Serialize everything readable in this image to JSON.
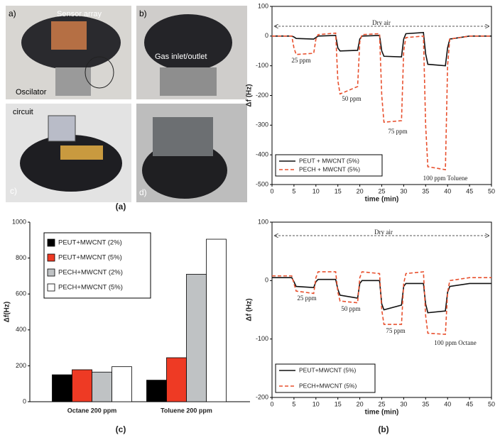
{
  "photos": {
    "panels": [
      {
        "label": "a)",
        "annotations": [
          "Sensor array",
          "Oscilator"
        ]
      },
      {
        "label": "b)",
        "annotations": [
          "Gas inlet/outlet"
        ]
      },
      {
        "label": "c)",
        "annotations": [
          "circuit"
        ]
      },
      {
        "label": "d)",
        "annotations": []
      }
    ]
  },
  "panel_labels": [
    "(a)",
    "(c)",
    "(b)"
  ],
  "chart_data": [
    {
      "type": "line",
      "xlabel": "time (min)",
      "ylabel": "Δf (Hz)",
      "xlim": [
        0,
        50
      ],
      "xticks": [
        0,
        5,
        10,
        15,
        20,
        25,
        30,
        35,
        40,
        45,
        50
      ],
      "ylim": [
        -500,
        100
      ],
      "yticks": [
        -500,
        -400,
        -300,
        -200,
        -100,
        0,
        100
      ],
      "annotations": [
        "Dry air",
        "25 ppm",
        "50 ppm",
        "75 ppm",
        "100 ppm Toluene"
      ],
      "legend": "lower left",
      "x": [
        0,
        4.5,
        5,
        5.5,
        9.5,
        10,
        10.5,
        14.5,
        15,
        15.5,
        19.5,
        20,
        20.5,
        24.5,
        25,
        25.5,
        29.5,
        30,
        30.5,
        34.5,
        35,
        35.5,
        39.5,
        40,
        40.5,
        45,
        50
      ],
      "series": [
        {
          "name": "PEUT + MWCNT (5%)",
          "color": "#111111",
          "style": "solid",
          "values": [
            0,
            0,
            -3,
            -8,
            -10,
            -5,
            0,
            2,
            -40,
            -50,
            -48,
            -10,
            0,
            2,
            -50,
            -68,
            -70,
            -10,
            8,
            12,
            -60,
            -95,
            -100,
            -40,
            -10,
            0,
            0
          ]
        },
        {
          "name": "PECH + MWCNT (5%)",
          "color": "#e8502e",
          "style": "dashed",
          "values": [
            0,
            0,
            -40,
            -62,
            -58,
            -10,
            5,
            10,
            -150,
            -195,
            -170,
            -20,
            5,
            8,
            -200,
            -290,
            -285,
            -50,
            -5,
            0,
            -300,
            -440,
            -450,
            -100,
            -10,
            0,
            0
          ]
        }
      ]
    },
    {
      "type": "bar",
      "ylabel": "Δf(Hz)",
      "legend": "upper left",
      "categories": [
        "Octane 200 ppm",
        "Toluene 200 ppm"
      ],
      "ylim": [
        0,
        1000
      ],
      "yticks": [
        0,
        200,
        400,
        600,
        800,
        1000
      ],
      "series": [
        {
          "name": "PEUT+MWCNT (2%)",
          "color": "#000000",
          "values": [
            150,
            120
          ]
        },
        {
          "name": "PEUT+MWCNT (5%)",
          "color": "#ee3a24",
          "values": [
            178,
            245
          ]
        },
        {
          "name": "PECH+MWCNT (2%)",
          "color": "#bfc2c4",
          "values": [
            165,
            710
          ]
        },
        {
          "name": "PECH+MWCNT (5%)",
          "color": "#ffffff",
          "values": [
            195,
            905
          ]
        }
      ]
    },
    {
      "type": "line",
      "xlabel": "time (min)",
      "ylabel": "Δf (Hz)",
      "xlim": [
        0,
        50
      ],
      "xticks": [
        0,
        5,
        10,
        15,
        20,
        25,
        30,
        35,
        40,
        45,
        50
      ],
      "ylim": [
        -200,
        100
      ],
      "yticks": [
        -200,
        -100,
        0,
        100
      ],
      "annotations": [
        "Dry air",
        "25 ppm",
        "50 ppm",
        "75 ppm",
        "100 ppm Octane"
      ],
      "legend": "lower left",
      "x": [
        0,
        4.5,
        5,
        5.5,
        9.5,
        10,
        10.5,
        14.5,
        15,
        15.5,
        19.5,
        20,
        20.5,
        24.5,
        25,
        25.5,
        29.5,
        30,
        30.5,
        34.5,
        35,
        35.5,
        39.5,
        40,
        40.5,
        45,
        50
      ],
      "series": [
        {
          "name": "PEUT+MWCNT (5%)",
          "color": "#111111",
          "style": "solid",
          "values": [
            5,
            5,
            -2,
            -10,
            -12,
            -2,
            2,
            2,
            -15,
            -25,
            -30,
            -5,
            0,
            0,
            -40,
            -50,
            -42,
            -10,
            -5,
            -5,
            -40,
            -55,
            -52,
            -20,
            -10,
            -5,
            -5
          ]
        },
        {
          "name": "PECH+MWCNT (5%)",
          "color": "#e8502e",
          "style": "dashed",
          "values": [
            8,
            8,
            -5,
            -18,
            -22,
            5,
            15,
            15,
            -20,
            -35,
            -38,
            5,
            15,
            12,
            -50,
            -75,
            -75,
            -5,
            12,
            15,
            -60,
            -90,
            -92,
            -20,
            0,
            5,
            5
          ]
        }
      ]
    }
  ]
}
